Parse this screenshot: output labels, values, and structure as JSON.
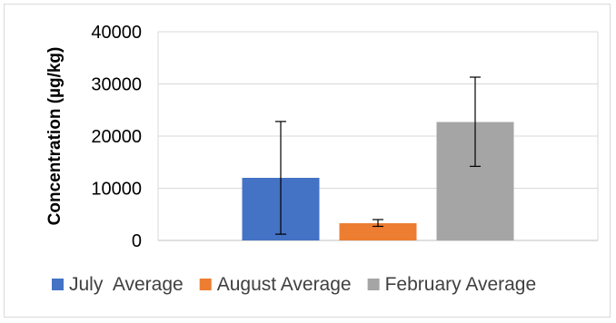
{
  "chart_data": {
    "type": "bar",
    "title": "",
    "xlabel": "",
    "ylabel": "Concentration (µg/kg)",
    "ylim": [
      0,
      40000
    ],
    "yticks": [
      "0",
      "10000",
      "20000",
      "30000",
      "40000"
    ],
    "grid": true,
    "legend_position": "bottom",
    "series": [
      {
        "name": "July  Average",
        "value": 12000,
        "error_low": 1200,
        "error_high": 22800,
        "color": "#4472c4"
      },
      {
        "name": "August Average",
        "value": 3300,
        "error_low": 2700,
        "error_high": 4000,
        "color": "#ed7d31"
      },
      {
        "name": "February Average",
        "value": 22700,
        "error_low": 14200,
        "error_high": 31300,
        "color": "#a5a5a5"
      }
    ]
  }
}
